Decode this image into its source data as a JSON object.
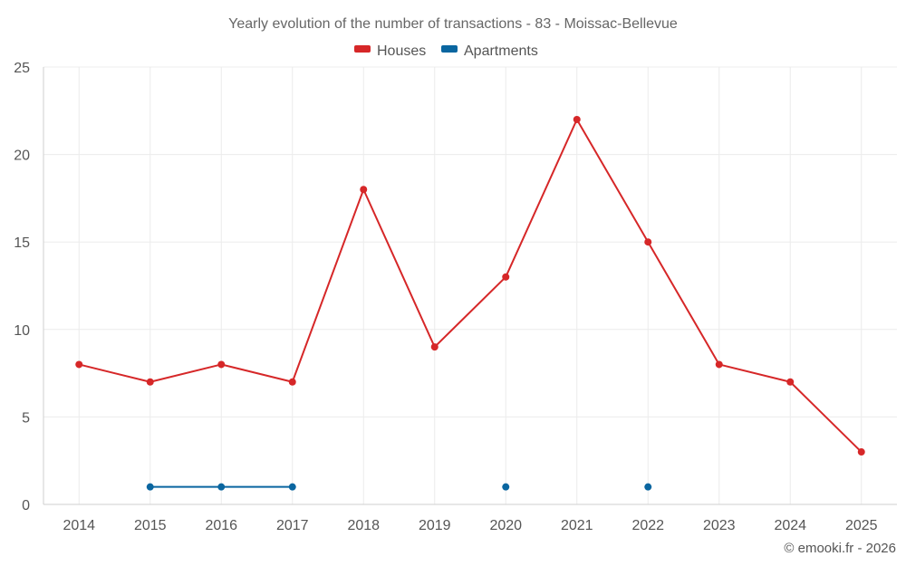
{
  "chart_data": {
    "type": "line",
    "title": "Yearly evolution of the number of transactions - 83 - Moissac-Bellevue",
    "categories": [
      "2014",
      "2015",
      "2016",
      "2017",
      "2018",
      "2019",
      "2020",
      "2021",
      "2022",
      "2023",
      "2024",
      "2025"
    ],
    "series": [
      {
        "name": "Houses",
        "color": "#d62728",
        "values": [
          8,
          7,
          8,
          7,
          18,
          9,
          13,
          22,
          15,
          8,
          7,
          3
        ]
      },
      {
        "name": "Apartments",
        "color": "#0a66a0",
        "values": [
          null,
          1,
          1,
          1,
          null,
          null,
          1,
          null,
          1,
          null,
          null,
          null
        ]
      }
    ],
    "ylim": [
      0,
      25
    ],
    "yticks": [
      0,
      5,
      10,
      15,
      20,
      25
    ],
    "grid": true,
    "legend_position": "top-center",
    "xlabel": "",
    "ylabel": ""
  },
  "credit": "© emooki.fr - 2026"
}
